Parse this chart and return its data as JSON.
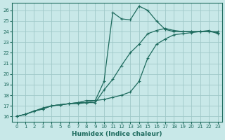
{
  "xlabel": "Humidex (Indice chaleur)",
  "xlim": [
    -0.5,
    23.5
  ],
  "ylim": [
    15.5,
    26.7
  ],
  "xticks": [
    0,
    1,
    2,
    3,
    4,
    5,
    6,
    7,
    8,
    9,
    10,
    11,
    12,
    13,
    14,
    15,
    16,
    17,
    18,
    19,
    20,
    21,
    22,
    23
  ],
  "yticks": [
    16,
    17,
    18,
    19,
    20,
    21,
    22,
    23,
    24,
    25,
    26
  ],
  "bg_color": "#c8e8e8",
  "grid_color": "#a0c8c8",
  "line_color": "#1e6b5e",
  "line1_x": [
    0,
    1,
    2,
    3,
    4,
    5,
    6,
    7,
    8,
    9,
    10,
    11,
    12,
    13,
    14,
    15,
    16,
    17,
    18,
    19,
    20,
    21,
    22,
    23
  ],
  "line1_y": [
    16.0,
    16.2,
    16.5,
    16.7,
    17.0,
    17.1,
    17.2,
    17.2,
    17.3,
    17.3,
    18.5,
    19.5,
    20.8,
    22.0,
    22.8,
    23.8,
    24.1,
    24.3,
    24.1,
    24.0,
    24.0,
    24.0,
    24.0,
    23.9
  ],
  "line2_x": [
    0,
    1,
    2,
    3,
    4,
    5,
    6,
    7,
    8,
    9,
    10,
    11,
    12,
    13,
    14,
    15,
    16,
    17,
    18,
    19,
    20,
    21,
    22,
    23
  ],
  "line2_y": [
    16.0,
    16.2,
    16.5,
    16.7,
    17.0,
    17.1,
    17.2,
    17.3,
    17.3,
    17.5,
    17.6,
    17.8,
    18.0,
    18.3,
    19.3,
    21.5,
    22.8,
    23.3,
    23.7,
    23.8,
    23.9,
    24.0,
    24.1,
    23.8
  ],
  "line3_x": [
    0,
    1,
    2,
    3,
    4,
    5,
    6,
    7,
    8,
    9,
    10,
    11,
    12,
    13,
    14,
    15,
    16,
    17,
    18,
    19,
    20,
    21,
    22,
    23
  ],
  "line3_y": [
    16.0,
    16.2,
    16.5,
    16.8,
    17.0,
    17.1,
    17.2,
    17.3,
    17.5,
    17.5,
    19.3,
    25.8,
    25.2,
    25.1,
    26.4,
    26.0,
    25.0,
    24.2,
    24.0,
    24.0,
    24.0,
    24.0,
    24.0,
    24.0
  ]
}
